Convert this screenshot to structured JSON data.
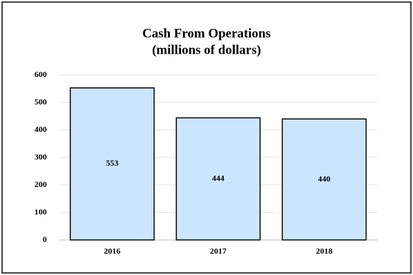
{
  "chart_data": {
    "type": "bar",
    "title": "Cash From Operations",
    "subtitle": "(millions of dollars)",
    "categories": [
      "2016",
      "2017",
      "2018"
    ],
    "values": [
      553,
      444,
      440
    ],
    "color": "#cce5ff",
    "ylim": [
      0,
      600
    ],
    "yticks": [
      0,
      100,
      200,
      300,
      400,
      500,
      600
    ],
    "grid": true
  }
}
